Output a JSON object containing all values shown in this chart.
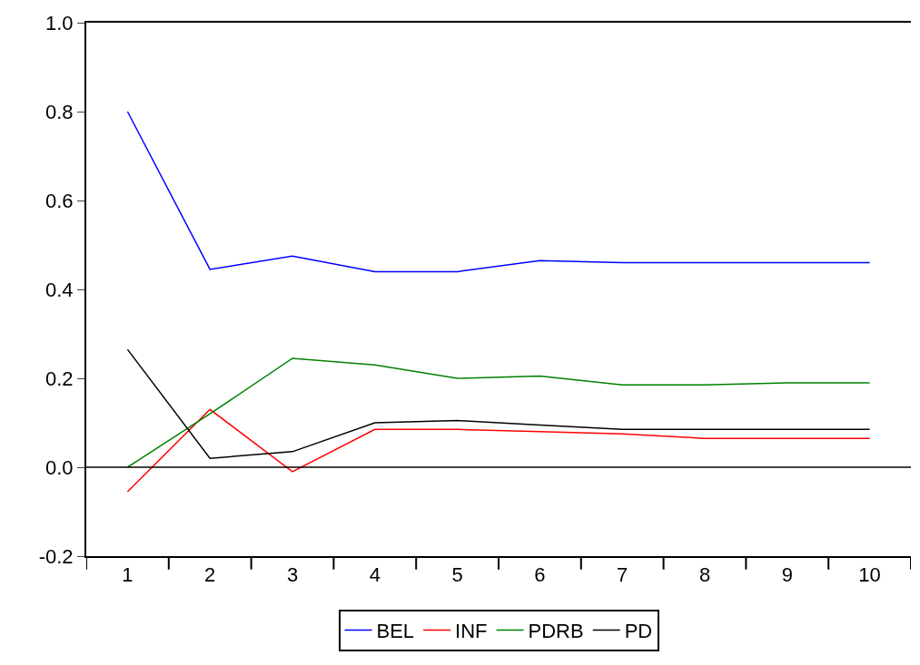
{
  "chart_data": {
    "type": "line",
    "categories": [
      "1",
      "2",
      "3",
      "4",
      "5",
      "6",
      "7",
      "8",
      "9",
      "10"
    ],
    "series": [
      {
        "name": "BEL",
        "color": "#0000ff",
        "values": [
          0.8,
          0.445,
          0.475,
          0.44,
          0.44,
          0.465,
          0.46,
          0.46,
          0.46,
          0.46
        ]
      },
      {
        "name": "INF",
        "color": "#ff0000",
        "values": [
          -0.055,
          0.13,
          -0.01,
          0.085,
          0.085,
          0.08,
          0.075,
          0.065,
          0.065,
          0.065
        ]
      },
      {
        "name": "PDRB",
        "color": "#008000",
        "values": [
          0.0,
          0.12,
          0.245,
          0.23,
          0.2,
          0.205,
          0.185,
          0.185,
          0.19,
          0.19
        ]
      },
      {
        "name": "PD",
        "color": "#000000",
        "values": [
          0.265,
          0.02,
          0.035,
          0.1,
          0.105,
          0.095,
          0.085,
          0.085,
          0.085,
          0.085
        ]
      }
    ],
    "ylim": [
      -0.2,
      1.0
    ],
    "yticks": [
      {
        "value": -0.2,
        "label": "-0.2"
      },
      {
        "value": 0.0,
        "label": "0.0"
      },
      {
        "value": 0.2,
        "label": "0.2"
      },
      {
        "value": 0.4,
        "label": "0.4"
      },
      {
        "value": 0.6,
        "label": "0.6"
      },
      {
        "value": 0.8,
        "label": "0.8"
      },
      {
        "value": 1.0,
        "label": "1.0"
      }
    ],
    "ref_lines": [
      {
        "axis": "y",
        "value": 0,
        "color": "#000000"
      }
    ],
    "legend": "bottom",
    "marker": "none",
    "line_style": "solid"
  }
}
